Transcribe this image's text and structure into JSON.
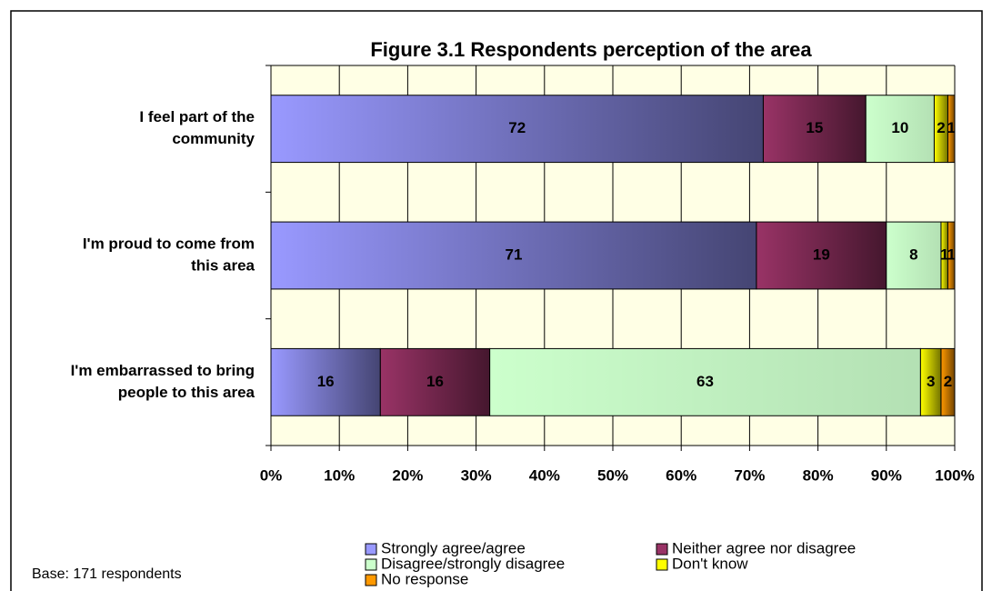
{
  "chart_data": {
    "type": "stacked_barh",
    "title": "Figure 3.1  Respondents perception of the area",
    "categories": [
      [
        "I feel part of the",
        "community"
      ],
      [
        "I'm proud to come from",
        "this area"
      ],
      [
        "I'm embarrassed to bring",
        "people to this area"
      ]
    ],
    "series": [
      {
        "name": "Strongly agree/agree",
        "color": "#9999ff",
        "values": [
          72,
          71,
          16
        ]
      },
      {
        "name": "Neither agree nor disagree",
        "color": "#993366",
        "values": [
          15,
          19,
          16
        ]
      },
      {
        "name": "Disagree/strongly disagree",
        "color": "#ccffcc",
        "values": [
          10,
          8,
          63
        ]
      },
      {
        "name": "Don't know",
        "color": "#ffff00",
        "values": [
          2,
          1,
          3
        ]
      },
      {
        "name": "No response",
        "color": "#ff9900",
        "values": [
          1,
          1,
          2
        ]
      }
    ],
    "xlim": [
      0,
      100
    ],
    "xticks": [
      {
        "value": 0,
        "label": "0%"
      },
      {
        "value": 10,
        "label": "10%"
      },
      {
        "value": 20,
        "label": "20%"
      },
      {
        "value": 30,
        "label": "30%"
      },
      {
        "value": 40,
        "label": "40%"
      },
      {
        "value": 50,
        "label": "50%"
      },
      {
        "value": 60,
        "label": "60%"
      },
      {
        "value": 70,
        "label": "70%"
      },
      {
        "value": 80,
        "label": "80%"
      },
      {
        "value": 90,
        "label": "90%"
      },
      {
        "value": 100,
        "label": "100%"
      }
    ],
    "grid": true,
    "note": "Base: 171  respondents"
  }
}
